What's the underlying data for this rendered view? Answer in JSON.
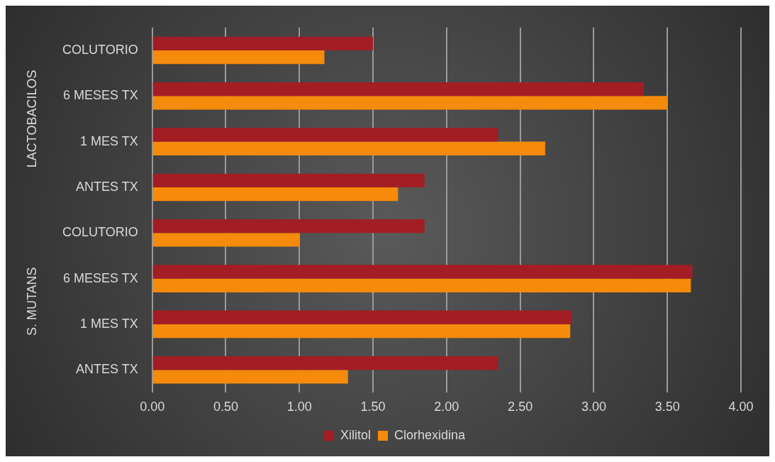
{
  "chart_data": {
    "type": "bar",
    "orientation": "horizontal",
    "categories": [
      "COLUTORIO",
      "6 MESES TX",
      "1 MES TX",
      "ANTES TX",
      "COLUTORIO",
      "6 MESES TX",
      "1 MES TX",
      "ANTES TX"
    ],
    "annotations": [
      "LACTOBACILOS",
      "S. MUTANS"
    ],
    "series": [
      {
        "name": "Xilitol",
        "color": "#a31d24",
        "values": [
          1.5,
          3.34,
          2.35,
          1.85,
          1.85,
          3.67,
          2.85,
          2.35
        ]
      },
      {
        "name": "Clorhexidina",
        "color": "#f58a0b",
        "values": [
          1.17,
          3.5,
          2.67,
          1.67,
          1.0,
          3.66,
          2.84,
          1.33
        ]
      }
    ],
    "xlim": [
      0,
      4
    ],
    "xticks": [
      {
        "value": 0,
        "label": "0.00"
      },
      {
        "value": 0.5,
        "label": "0.50"
      },
      {
        "value": 1,
        "label": "1.00"
      },
      {
        "value": 1.5,
        "label": "1.50"
      },
      {
        "value": 2,
        "label": "2.00"
      },
      {
        "value": 2.5,
        "label": "2.50"
      },
      {
        "value": 3,
        "label": "3.00"
      },
      {
        "value": 3.5,
        "label": "3.50"
      },
      {
        "value": 4,
        "label": "4.00"
      }
    ],
    "grid": "x",
    "legend": "bottom"
  }
}
